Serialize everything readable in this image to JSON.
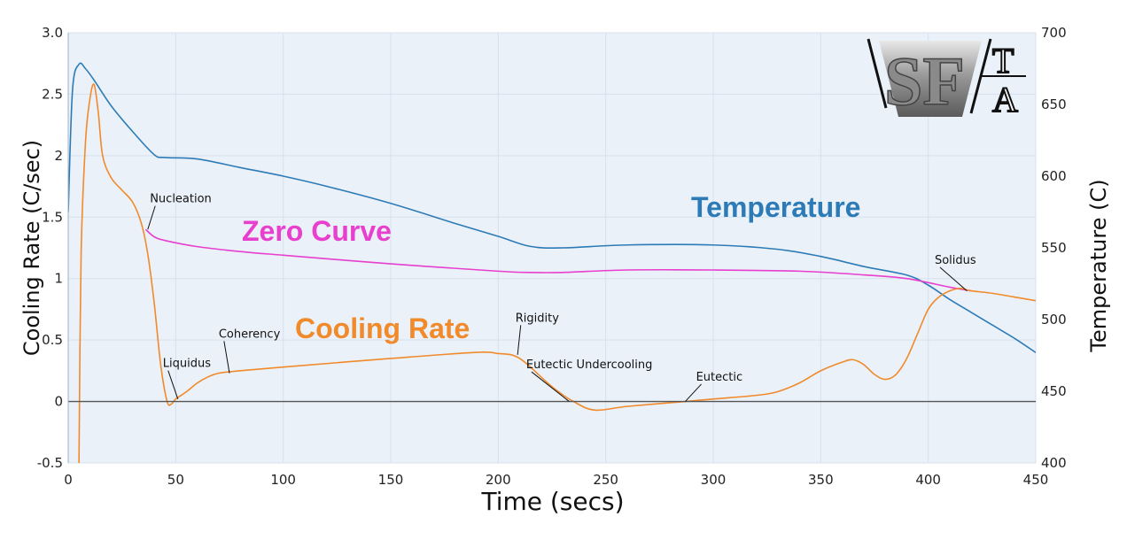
{
  "chart_data": {
    "type": "line",
    "xlabel": "Time (secs)",
    "ylabel_left": "Cooling Rate (C/sec)",
    "ylabel_right": "Temperature (C)",
    "xlim": [
      0,
      450
    ],
    "ylim_left": [
      -0.5,
      3.0
    ],
    "ylim_right": [
      400,
      700
    ],
    "x_ticks": [
      "0",
      "50",
      "100",
      "150",
      "200",
      "250",
      "300",
      "350",
      "400",
      "450"
    ],
    "y_left_ticks": [
      "-0.5",
      "0",
      "0.5",
      "1",
      "1.5",
      "2",
      "2.5",
      "3.0"
    ],
    "y_right_ticks": [
      "400",
      "450",
      "500",
      "550",
      "600",
      "650",
      "700"
    ],
    "grid": true,
    "background_color": "#eaf1f9",
    "series": [
      {
        "name": "Temperature",
        "color": "#2d7bb6",
        "axis": "right",
        "x": [
          0,
          2,
          5,
          8,
          12,
          20,
          30,
          40,
          45,
          60,
          80,
          100,
          120,
          150,
          180,
          200,
          215,
          230,
          260,
          300,
          330,
          350,
          370,
          390,
          400,
          410,
          420,
          430,
          440,
          450
        ],
        "y": [
          575,
          660,
          678,
          675,
          667,
          649,
          631,
          615,
          613,
          612,
          606,
          600,
          593,
          581,
          567,
          558,
          551,
          550,
          552,
          552,
          549,
          544,
          537,
          531,
          524,
          514,
          505,
          496,
          487,
          477
        ]
      },
      {
        "name": "Zero Curve",
        "color": "#e83fcf",
        "axis": "left",
        "x": [
          36,
          40,
          45,
          60,
          80,
          100,
          150,
          200,
          215,
          230,
          260,
          300,
          340,
          370,
          390,
          410,
          420
        ],
        "y": [
          1.4,
          1.34,
          1.31,
          1.26,
          1.22,
          1.19,
          1.12,
          1.06,
          1.05,
          1.05,
          1.07,
          1.07,
          1.06,
          1.03,
          1.0,
          0.93,
          0.9
        ]
      },
      {
        "name": "Cooling Rate",
        "color": "#f18a2a",
        "axis": "left",
        "x": [
          5,
          6,
          8,
          10,
          12,
          14,
          16,
          20,
          25,
          30,
          34,
          37,
          40,
          43,
          46,
          48,
          50,
          55,
          60,
          65,
          70,
          80,
          100,
          150,
          190,
          200,
          206,
          210,
          215,
          225,
          235,
          245,
          260,
          287,
          300,
          320,
          330,
          340,
          350,
          360,
          365,
          370,
          375,
          380,
          385,
          390,
          395,
          400,
          405,
          410,
          415,
          420,
          430,
          440,
          450
        ],
        "y": [
          -0.5,
          1.2,
          2.1,
          2.45,
          2.58,
          2.35,
          2.0,
          1.82,
          1.72,
          1.62,
          1.45,
          1.2,
          0.8,
          0.3,
          0.0,
          -0.02,
          0.02,
          0.08,
          0.15,
          0.2,
          0.23,
          0.25,
          0.28,
          0.35,
          0.4,
          0.39,
          0.38,
          0.35,
          0.28,
          0.12,
          0.0,
          -0.07,
          -0.04,
          0.0,
          0.02,
          0.05,
          0.08,
          0.15,
          0.25,
          0.32,
          0.34,
          0.3,
          0.22,
          0.18,
          0.22,
          0.35,
          0.55,
          0.75,
          0.85,
          0.9,
          0.92,
          0.9,
          0.88,
          0.85,
          0.82
        ]
      },
      {
        "name": "",
        "color": "#555555",
        "axis": "left",
        "x": [
          0,
          450
        ],
        "y": [
          0,
          0
        ]
      }
    ],
    "series_labels": {
      "temperature": "Temperature",
      "zero_curve": "Zero Curve",
      "cooling_rate": "Cooling Rate"
    },
    "annotations": [
      {
        "text": "Nucleation",
        "x": 37,
        "y": 1.4,
        "label_x": 38,
        "label_y": 1.62
      },
      {
        "text": "Liquidus",
        "x": 51,
        "y": 0.02,
        "label_x": 44,
        "label_y": 0.28
      },
      {
        "text": "Coherency",
        "x": 75,
        "y": 0.23,
        "label_x": 70,
        "label_y": 0.52
      },
      {
        "text": "Rigidity",
        "x": 209,
        "y": 0.38,
        "label_x": 208,
        "label_y": 0.65
      },
      {
        "text": "Eutectic Undercooling",
        "x": 233,
        "y": 0.0,
        "label_x": 213,
        "label_y": 0.27
      },
      {
        "text": "Eutectic",
        "x": 287,
        "y": 0.0,
        "label_x": 292,
        "label_y": 0.17
      },
      {
        "text": "Solidus",
        "x": 418,
        "y": 0.9,
        "label_x": 403,
        "label_y": 1.12
      }
    ]
  },
  "logo": {
    "text_left": "SF",
    "text_top": "T",
    "text_bottom": "A",
    "colors": {
      "metal_light": "#d9d9d9",
      "metal_dark": "#6b6b6b",
      "ink": "#111111"
    }
  }
}
